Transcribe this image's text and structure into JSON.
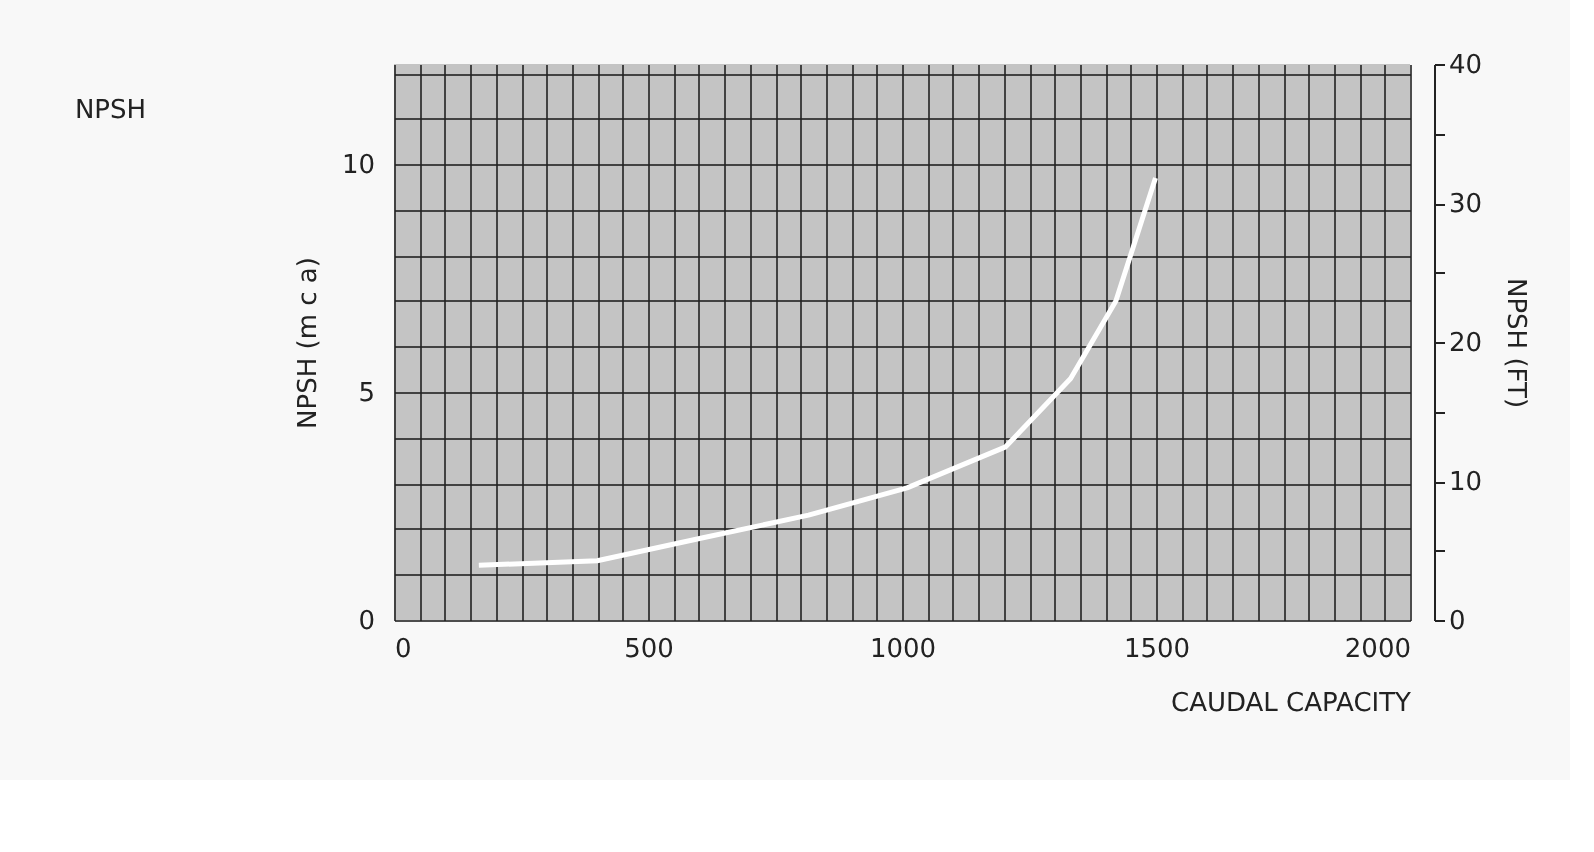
{
  "chart_data": {
    "type": "line",
    "title": "NPSH",
    "xlabel": "CAUDAL CAPACITY",
    "ylabel": "NPSH (m c a)",
    "y2label": "NPSH (FT)",
    "x": [
      167,
      400,
      606,
      816,
      1010,
      1204,
      1332,
      1421,
      1499
    ],
    "series": [
      {
        "color": "#ffffff",
        "values": [
          1.2,
          1.3,
          1.8,
          2.3,
          2.9,
          3.8,
          5.3,
          7.0,
          9.7
        ]
      }
    ],
    "xlim": [
      0,
      2000
    ],
    "ylim": [
      0,
      12.2
    ],
    "y2lim": [
      0,
      40
    ],
    "xticks": [
      0,
      {
        "value": 50,
        "label": null
      },
      {
        "value": 100,
        "label": null
      },
      {
        "value": 150,
        "label": null
      },
      {
        "value": 200,
        "label": null
      },
      {
        "value": 250,
        "label": null
      },
      {
        "value": 300,
        "label": null
      },
      {
        "value": 350,
        "label": null
      },
      {
        "value": 400,
        "label": null
      },
      {
        "value": 450,
        "label": null
      },
      500,
      {
        "value": 550,
        "label": null
      },
      {
        "value": 600,
        "label": null
      },
      {
        "value": 650,
        "label": null
      },
      {
        "value": 700,
        "label": null
      },
      {
        "value": 750,
        "label": null
      },
      {
        "value": 800,
        "label": null
      },
      {
        "value": 850,
        "label": null
      },
      {
        "value": 900,
        "label": null
      },
      {
        "value": 950,
        "label": null
      },
      1000,
      {
        "value": 1050,
        "label": null
      },
      {
        "value": 1100,
        "label": null
      },
      {
        "value": 1150,
        "label": null
      },
      {
        "value": 1200,
        "label": null
      },
      {
        "value": 1250,
        "label": null
      },
      {
        "value": 1300,
        "label": null
      },
      {
        "value": 1350,
        "label": null
      },
      {
        "value": 1400,
        "label": null
      },
      {
        "value": 1450,
        "label": null
      },
      1500,
      {
        "value": 1550,
        "label": null
      },
      {
        "value": 1600,
        "label": null
      },
      {
        "value": 1650,
        "label": null
      },
      {
        "value": 1700,
        "label": null
      },
      {
        "value": 1750,
        "label": null
      },
      {
        "value": 1800,
        "label": null
      },
      {
        "value": 1850,
        "label": null
      },
      {
        "value": 1900,
        "label": null
      },
      {
        "value": 1950,
        "label": null
      },
      2000
    ],
    "yticks": [
      0,
      {
        "value": 1,
        "label": null
      },
      {
        "value": 2,
        "label": null
      },
      {
        "value": 3,
        "label": null
      },
      {
        "value": 4,
        "label": null
      },
      5,
      {
        "value": 6,
        "label": null
      },
      {
        "value": 7,
        "label": null
      },
      {
        "value": 8,
        "label": null
      },
      {
        "value": 9,
        "label": null
      },
      10,
      {
        "value": 11,
        "label": null
      },
      {
        "value": 12,
        "label": null
      }
    ],
    "y2ticks": [
      0,
      {
        "value": 5,
        "label": null
      },
      10,
      {
        "value": 15,
        "label": null
      },
      20,
      {
        "value": 25,
        "label": null
      },
      30,
      {
        "value": 35,
        "label": null
      },
      40
    ],
    "grid": true,
    "marker": "none",
    "line_style": "solid",
    "legend": false
  }
}
